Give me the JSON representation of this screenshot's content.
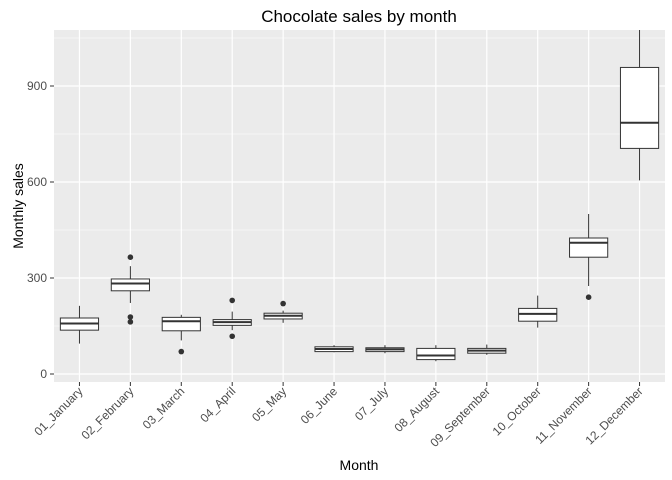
{
  "chart_data": {
    "type": "boxplot",
    "title": "Chocolate sales by month",
    "xlabel": "Month",
    "ylabel": "Monthly sales",
    "ylim": [
      -25,
      1075
    ],
    "yticks": [
      0,
      300,
      600,
      900
    ],
    "ytick_labels": [
      "0",
      "300",
      "600",
      "900"
    ],
    "grid": true,
    "background": "#ebebeb",
    "gridline_color": "#ffffff",
    "box_fill": "#ffffff",
    "box_stroke": "#333333",
    "outlier_color": "#333333",
    "categories": [
      "01_January",
      "02_February",
      "03_March",
      "04_April",
      "05_May",
      "06_June",
      "07_July",
      "08_August",
      "09_September",
      "10_October",
      "11_November",
      "12_December"
    ],
    "boxes": [
      {
        "lower_whisker": 95,
        "q1": 137,
        "median": 158,
        "q3": 175,
        "upper_whisker": 213,
        "outliers": []
      },
      {
        "lower_whisker": 222,
        "q1": 260,
        "median": 283,
        "q3": 297,
        "upper_whisker": 337,
        "outliers": [
          365,
          178,
          163
        ]
      },
      {
        "lower_whisker": 105,
        "q1": 135,
        "median": 165,
        "q3": 177,
        "upper_whisker": 185,
        "outliers": [
          70
        ]
      },
      {
        "lower_whisker": 137,
        "q1": 152,
        "median": 162,
        "q3": 170,
        "upper_whisker": 195,
        "outliers": [
          230,
          118
        ]
      },
      {
        "lower_whisker": 160,
        "q1": 172,
        "median": 182,
        "q3": 190,
        "upper_whisker": 198,
        "outliers": [
          220
        ]
      },
      {
        "lower_whisker": 68,
        "q1": 70,
        "median": 78,
        "q3": 85,
        "upper_whisker": 90,
        "outliers": []
      },
      {
        "lower_whisker": 65,
        "q1": 70,
        "median": 77,
        "q3": 82,
        "upper_whisker": 90,
        "outliers": []
      },
      {
        "lower_whisker": 40,
        "q1": 45,
        "median": 58,
        "q3": 80,
        "upper_whisker": 90,
        "outliers": []
      },
      {
        "lower_whisker": 60,
        "q1": 65,
        "median": 73,
        "q3": 80,
        "upper_whisker": 92,
        "outliers": []
      },
      {
        "lower_whisker": 145,
        "q1": 165,
        "median": 188,
        "q3": 205,
        "upper_whisker": 245,
        "outliers": []
      },
      {
        "lower_whisker": 275,
        "q1": 365,
        "median": 410,
        "q3": 425,
        "upper_whisker": 500,
        "outliers": [
          240
        ]
      },
      {
        "lower_whisker": 605,
        "q1": 705,
        "median": 785,
        "q3": 958,
        "upper_whisker": 1075,
        "outliers": []
      }
    ]
  }
}
